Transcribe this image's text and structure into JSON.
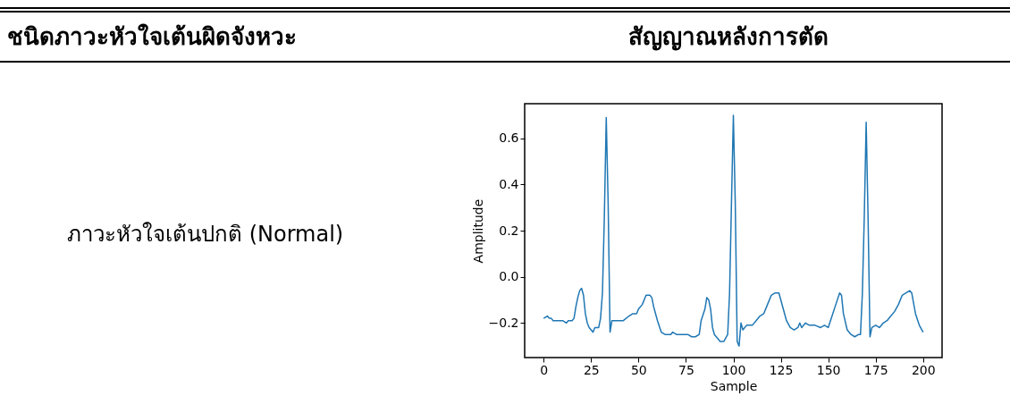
{
  "chart_data": {
    "type": "line",
    "annotations": [
      "ชนิดภาวะหัวใจเต้นผิดจังหวะ",
      "สัญญาณหลังการตัด",
      "ภาวะหัวใจเต้นปกติ (Normal)"
    ],
    "xlabel": "Sample",
    "ylabel": "Amplitude",
    "xlim": [
      -10,
      210
    ],
    "xticks": [
      0,
      25,
      50,
      75,
      100,
      125,
      150,
      175,
      200
    ],
    "ylim": [
      -0.35,
      0.75
    ],
    "yticks": [
      -0.2,
      {
        "value": 0,
        "label": "0.0"
      },
      0.2,
      0.4,
      0.6
    ],
    "grid": false,
    "series": [
      {
        "color": "#1f77b4",
        "x": [
          0,
          2,
          3,
          4,
          5,
          8,
          10,
          12,
          13,
          15,
          16,
          17,
          18,
          19,
          20,
          21,
          22,
          23,
          24,
          26,
          27,
          28,
          29,
          30,
          31,
          32,
          33,
          34,
          35,
          36,
          37,
          40,
          42,
          45,
          47,
          49,
          50,
          52,
          54,
          56,
          57,
          58,
          60,
          62,
          64,
          67,
          68,
          70,
          74,
          76,
          78,
          80,
          82,
          83,
          85,
          86,
          87,
          88,
          89,
          90,
          92,
          93,
          95,
          97,
          98,
          99,
          100,
          101,
          102,
          103,
          104,
          105,
          107,
          110,
          112,
          114,
          116,
          118,
          120,
          122,
          124,
          126,
          128,
          130,
          132,
          134,
          135,
          136,
          138,
          140,
          143,
          146,
          148,
          150,
          152,
          154,
          156,
          157,
          158,
          160,
          162,
          164,
          166,
          167,
          168,
          169,
          170,
          171,
          172,
          173,
          175,
          177,
          179,
          181,
          183,
          185,
          187,
          189,
          191,
          193,
          194,
          196,
          198,
          200
        ],
        "values": [
          -0.18,
          -0.17,
          -0.18,
          -0.18,
          -0.19,
          -0.19,
          -0.19,
          -0.2,
          -0.19,
          -0.19,
          -0.18,
          -0.13,
          -0.09,
          -0.06,
          -0.05,
          -0.08,
          -0.16,
          -0.2,
          -0.22,
          -0.24,
          -0.22,
          -0.22,
          -0.22,
          -0.18,
          -0.07,
          0.26,
          0.69,
          0.32,
          -0.24,
          -0.19,
          -0.19,
          -0.19,
          -0.19,
          -0.17,
          -0.16,
          -0.16,
          -0.14,
          -0.12,
          -0.08,
          -0.08,
          -0.09,
          -0.13,
          -0.19,
          -0.24,
          -0.25,
          -0.25,
          -0.24,
          -0.25,
          -0.25,
          -0.25,
          -0.26,
          -0.26,
          -0.25,
          -0.19,
          -0.14,
          -0.09,
          -0.1,
          -0.14,
          -0.22,
          -0.25,
          -0.27,
          -0.28,
          -0.28,
          -0.25,
          -0.07,
          0.32,
          0.7,
          0.32,
          -0.28,
          -0.3,
          -0.2,
          -0.23,
          -0.21,
          -0.21,
          -0.19,
          -0.17,
          -0.16,
          -0.12,
          -0.08,
          -0.07,
          -0.07,
          -0.13,
          -0.19,
          -0.22,
          -0.23,
          -0.22,
          -0.2,
          -0.22,
          -0.2,
          -0.21,
          -0.21,
          -0.22,
          -0.21,
          -0.22,
          -0.17,
          -0.12,
          -0.07,
          -0.08,
          -0.16,
          -0.23,
          -0.25,
          -0.26,
          -0.25,
          -0.25,
          -0.07,
          0.26,
          0.67,
          0.26,
          -0.26,
          -0.22,
          -0.21,
          -0.22,
          -0.2,
          -0.19,
          -0.17,
          -0.15,
          -0.12,
          -0.08,
          -0.07,
          -0.06,
          -0.07,
          -0.16,
          -0.21,
          -0.24
        ]
      }
    ]
  }
}
